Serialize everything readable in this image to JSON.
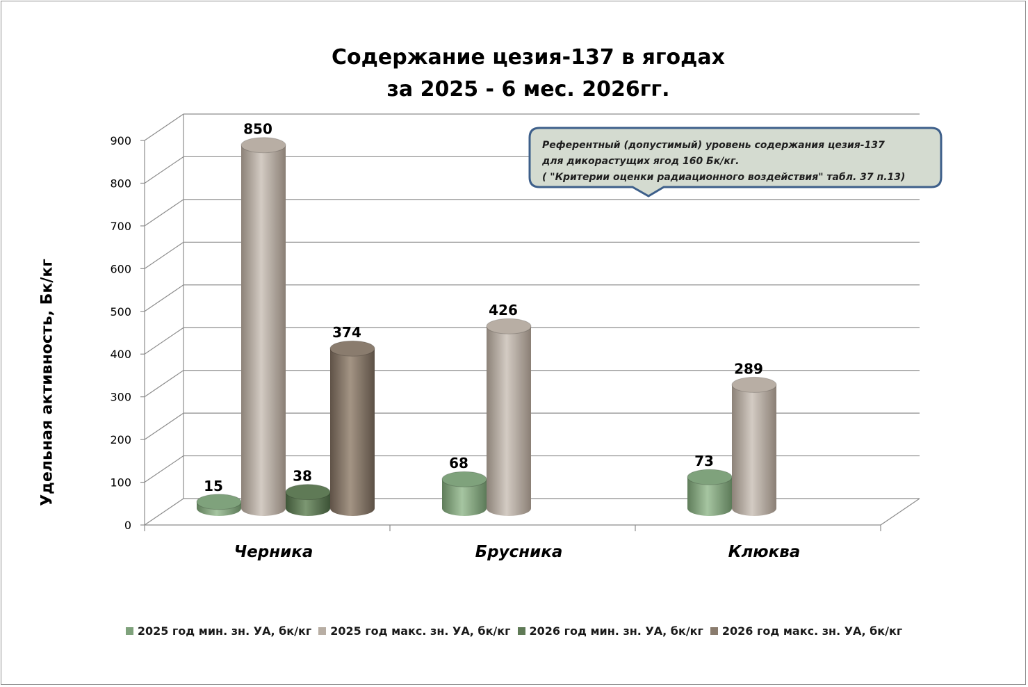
{
  "chart_data": {
    "type": "bar",
    "title": [
      "Содержание цезия-137 в ягодах",
      "за 2025 - 6 мес. 2026гг."
    ],
    "ylabel": "Удельная активность, Бк/кг",
    "xlabel": "",
    "ylim": [
      0,
      900
    ],
    "yticks": [
      "0",
      "100",
      "200",
      "300",
      "400",
      "500",
      "600",
      "700",
      "800",
      "900"
    ],
    "categories": [
      "Черника",
      "Брусника",
      "Клюква"
    ],
    "series": [
      {
        "name": "2025 год мин. зн. УА, бк/кг",
        "values": [
          15,
          68,
          73
        ],
        "color": "#7fa27c"
      },
      {
        "name": "2025 год макс. зн. УА, бк/кг",
        "values": [
          850,
          426,
          289
        ],
        "color": "#b8aea4"
      },
      {
        "name": "2026 год мин. зн. УА, бк/кг",
        "values": [
          38,
          null,
          null
        ],
        "color": "#5f7a56"
      },
      {
        "name": "2026 год макс. зн. УА, бк/кг",
        "values": [
          374,
          null,
          null
        ],
        "color": "#8a7c6e"
      }
    ],
    "data_labels": true,
    "grid": true,
    "legend_position": "bottom",
    "style": "3d-cylinder"
  },
  "annotation": {
    "lines": [
      "Референтный (допустимый) уровень содержания цезия-137",
      "для дикорастущих ягод  160 Бк/кг.",
      "( \"Критерии оценки радиационного воздействия\" табл. 37 п.13)"
    ],
    "fill": "#d4dbd0",
    "border": "#3d5f8a"
  }
}
